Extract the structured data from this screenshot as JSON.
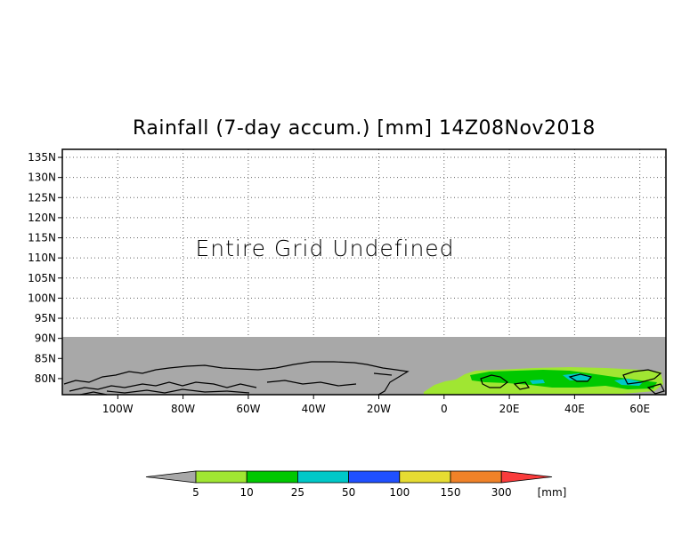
{
  "title": "Rainfall (7-day accum.) [mm] 14Z08Nov2018",
  "message": "Entire Grid Undefined",
  "colors": {
    "undefined_fill": "#a8a8a8",
    "coastline": "#000000",
    "frame": "#000000"
  },
  "chart_data": {
    "type": "heatmap",
    "title": "Rainfall (7-day accum.) [mm] 14Z08Nov2018",
    "x_range": [
      -117,
      68
    ],
    "y_range": [
      76,
      137
    ],
    "x_ticks": [
      "100W",
      "80W",
      "60W",
      "40W",
      "20W",
      "0",
      "20E",
      "40E",
      "60E"
    ],
    "y_ticks": [
      "135N",
      "130N",
      "125N",
      "120N",
      "115N",
      "110N",
      "105N",
      "100N",
      "95N",
      "90N",
      "85N",
      "80N"
    ],
    "grid": true,
    "undefined_region": "above 90N"
  },
  "colorbar": {
    "unit": "[mm]",
    "labels": [
      "5",
      "10",
      "25",
      "50",
      "100",
      "150",
      "300"
    ],
    "colors": [
      "#a8a8a8",
      "#a0e632",
      "#00c800",
      "#00c8c8",
      "#2050ff",
      "#e6dc32",
      "#f08228",
      "#fa3c3c"
    ]
  }
}
